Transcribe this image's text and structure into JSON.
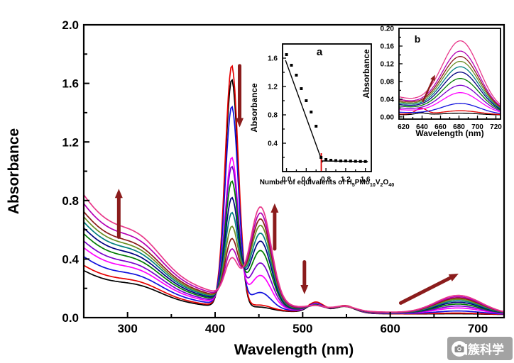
{
  "watermark": {
    "text": "团簇科学"
  },
  "style": {
    "arrow_color": "#8b1c1c",
    "axis_color": "#000000",
    "fit_line_color": "#000000",
    "equivalence_line_color": "#e00000",
    "point_color": "#000000"
  },
  "chart_data": [
    {
      "id": "main",
      "type": "line",
      "title": "",
      "xlabel": "Wavelength (nm)",
      "ylabel": "Absorbance",
      "xlim": [
        250,
        730
      ],
      "ylim": [
        0,
        2.0
      ],
      "xticks": [
        300,
        400,
        500,
        600,
        700
      ],
      "yticks": [
        0.0,
        0.4,
        0.8,
        1.2,
        1.6,
        2.0
      ],
      "x_minor": [
        350,
        450,
        550,
        650
      ],
      "y_minor": [
        0.2,
        0.6,
        1.0,
        1.4,
        1.8
      ],
      "band_centers": {
        "uv_edge": 250,
        "shoulder": 315,
        "soret": 419,
        "growing_band": 452,
        "q1": 515,
        "q2": 548,
        "nir": 678
      },
      "series": [
        {
          "name": "spectrum-01",
          "color": "#000000",
          "uv": 0.3,
          "soret": 1.56,
          "b452": 0.02,
          "q515": 0.06,
          "q550": 0.045,
          "b680": 0.004
        },
        {
          "name": "spectrum-02",
          "color": "#e60000",
          "uv": 0.335,
          "soret": 1.65,
          "b452": 0.03,
          "q515": 0.068,
          "q550": 0.05,
          "b680": 0.008
        },
        {
          "name": "spectrum-03",
          "color": "#1010dd",
          "uv": 0.395,
          "soret": 1.36,
          "b452": 0.11,
          "q515": 0.055,
          "q550": 0.045,
          "b680": 0.022
        },
        {
          "name": "spectrum-04",
          "color": "#ff00ff",
          "uv": 0.455,
          "soret": 1.0,
          "b452": 0.22,
          "q515": 0.047,
          "q550": 0.042,
          "b680": 0.042
        },
        {
          "name": "spectrum-05",
          "color": "#7b00cc",
          "uv": 0.5,
          "soret": 0.93,
          "b452": 0.3,
          "q515": 0.042,
          "q550": 0.04,
          "b680": 0.055
        },
        {
          "name": "spectrum-06",
          "color": "#007a00",
          "uv": 0.55,
          "soret": 0.82,
          "b452": 0.38,
          "q515": 0.038,
          "q550": 0.038,
          "b680": 0.068
        },
        {
          "name": "spectrum-07",
          "color": "#000080",
          "uv": 0.59,
          "soret": 0.7,
          "b452": 0.44,
          "q515": 0.034,
          "q550": 0.036,
          "b680": 0.08
        },
        {
          "name": "spectrum-08",
          "color": "#007f7f",
          "uv": 0.63,
          "soret": 0.59,
          "b452": 0.49,
          "q515": 0.031,
          "q550": 0.034,
          "b680": 0.09
        },
        {
          "name": "spectrum-09",
          "color": "#6b8e23",
          "uv": 0.665,
          "soret": 0.49,
          "b452": 0.54,
          "q515": 0.028,
          "q550": 0.032,
          "b680": 0.1
        },
        {
          "name": "spectrum-10",
          "color": "#8b1a1a",
          "uv": 0.7,
          "soret": 0.4,
          "b452": 0.58,
          "q515": 0.026,
          "q550": 0.031,
          "b680": 0.108
        },
        {
          "name": "spectrum-11",
          "color": "#b400b4",
          "uv": 0.755,
          "soret": 0.32,
          "b452": 0.615,
          "q515": 0.023,
          "q550": 0.03,
          "b680": 0.116
        },
        {
          "name": "spectrum-12",
          "color": "#e8388a",
          "uv": 0.815,
          "soret": 0.25,
          "b452": 0.65,
          "q515": 0.021,
          "q550": 0.029,
          "b680": 0.125
        }
      ],
      "annotations": [
        {
          "type": "arrow",
          "dir": "up",
          "x1": 290,
          "y1": 0.55,
          "x2": 290,
          "y2": 0.88
        },
        {
          "type": "arrow",
          "dir": "down",
          "x1": 428,
          "y1": 1.72,
          "x2": 428,
          "y2": 1.3
        },
        {
          "type": "arrow",
          "dir": "up",
          "x1": 468,
          "y1": 0.47,
          "x2": 468,
          "y2": 0.78
        },
        {
          "type": "arrow",
          "dir": "down",
          "x1": 502,
          "y1": 0.38,
          "x2": 502,
          "y2": 0.16
        },
        {
          "type": "arrow",
          "dir": "up-right",
          "x1": 612,
          "y1": 0.1,
          "x2": 678,
          "y2": 0.3
        }
      ]
    },
    {
      "id": "inset_a",
      "type": "scatter",
      "panel_label": "a",
      "xlabel": "Number of equivalents of H5PMo10V2O40",
      "xlabel_parts": [
        [
          "Number of equivalents of H",
          "n"
        ],
        [
          "5",
          "s"
        ],
        [
          "PMo",
          "n"
        ],
        [
          "10",
          "s"
        ],
        [
          "V",
          "n"
        ],
        [
          "2",
          "s"
        ],
        [
          "O",
          "n"
        ],
        [
          "40",
          "s"
        ]
      ],
      "ylabel": "Absorbance",
      "xlim": [
        -0.08,
        1.72
      ],
      "ylim": [
        0,
        1.8
      ],
      "xticks": [
        0.0,
        0.4,
        0.8,
        1.2,
        1.6
      ],
      "yticks": [
        0.4,
        0.8,
        1.2,
        1.6
      ],
      "x_minor": [
        0.2,
        0.6,
        1.0,
        1.4
      ],
      "y_minor": [
        0.2,
        0.6,
        1.0,
        1.4
      ],
      "points": [
        [
          0.0,
          1.65
        ],
        [
          0.1,
          1.5
        ],
        [
          0.2,
          1.36
        ],
        [
          0.3,
          1.17
        ],
        [
          0.4,
          1.0
        ],
        [
          0.5,
          0.84
        ],
        [
          0.6,
          0.64
        ],
        [
          0.7,
          0.2
        ],
        [
          0.8,
          0.17
        ],
        [
          0.9,
          0.16
        ],
        [
          1.0,
          0.155
        ],
        [
          1.1,
          0.15
        ],
        [
          1.2,
          0.15
        ],
        [
          1.3,
          0.148
        ],
        [
          1.4,
          0.145
        ],
        [
          1.5,
          0.143
        ],
        [
          1.6,
          0.142
        ]
      ],
      "fit_lines": [
        {
          "x1": -0.02,
          "y1": 1.57,
          "x2": 0.73,
          "y2": 0.13
        },
        {
          "x1": 0.7,
          "y1": 0.15,
          "x2": 1.65,
          "y2": 0.14
        }
      ],
      "equivalence_x": 0.705
    },
    {
      "id": "inset_b",
      "type": "line",
      "panel_label": "b",
      "xlabel": "Wavelength (nm)",
      "ylabel": "Absorbance",
      "xlim": [
        615,
        725
      ],
      "ylim": [
        -0.005,
        0.2
      ],
      "xticks": [
        620,
        640,
        660,
        680,
        700,
        720
      ],
      "yticks": [
        0.0,
        0.04,
        0.08,
        0.12,
        0.16,
        0.2
      ],
      "x_minor": [
        630,
        650,
        670,
        690,
        710
      ],
      "y_minor": [
        0.02,
        0.06,
        0.1,
        0.14,
        0.18
      ],
      "series": [
        {
          "name": "spectrum-01",
          "color": "#000000",
          "h": 0.004,
          "bump638": 0.004
        },
        {
          "name": "spectrum-02",
          "color": "#e60000",
          "h": 0.009,
          "bump638": 0.013
        },
        {
          "name": "spectrum-03",
          "color": "#1010dd",
          "h": 0.024,
          "bump638": 0
        },
        {
          "name": "spectrum-04",
          "color": "#ff00ff",
          "h": 0.046,
          "bump638": 0
        },
        {
          "name": "spectrum-05",
          "color": "#7b00cc",
          "h": 0.061,
          "bump638": 0
        },
        {
          "name": "spectrum-06",
          "color": "#007a00",
          "h": 0.075,
          "bump638": 0
        },
        {
          "name": "spectrum-07",
          "color": "#000080",
          "h": 0.088,
          "bump638": 0
        },
        {
          "name": "spectrum-08",
          "color": "#007f7f",
          "h": 0.099,
          "bump638": 0
        },
        {
          "name": "spectrum-09",
          "color": "#6b8e23",
          "h": 0.11,
          "bump638": 0
        },
        {
          "name": "spectrum-10",
          "color": "#8b1a1a",
          "h": 0.12,
          "bump638": 0
        },
        {
          "name": "spectrum-11",
          "color": "#b400b4",
          "h": 0.131,
          "bump638": 0
        },
        {
          "name": "spectrum-12",
          "color": "#e8388a",
          "h": 0.152,
          "bump638": 0
        }
      ],
      "annotations": [
        {
          "type": "arrow",
          "dir": "up-right",
          "x1": 641,
          "y1": 0.035,
          "x2": 654,
          "y2": 0.095
        }
      ]
    }
  ]
}
